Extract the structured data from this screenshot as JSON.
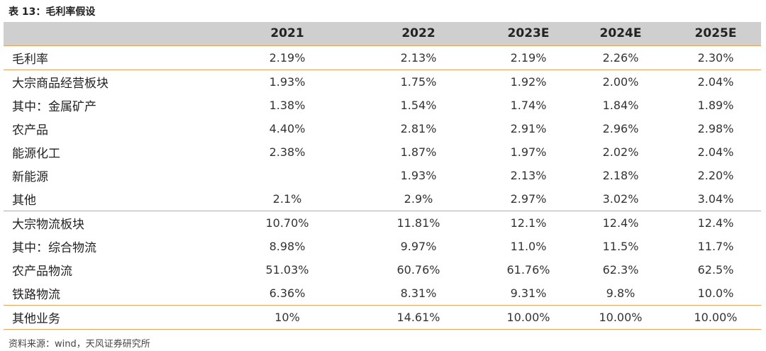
{
  "title": "表 13：毛利率假设",
  "columns": [
    "",
    "2021",
    "2022",
    "2023E",
    "2024E",
    "2025E"
  ],
  "rows": [
    {
      "label": "毛利率",
      "values": [
        "2.19%",
        "2.13%",
        "2.19%",
        "2.26%",
        "2.30%"
      ]
    },
    {
      "label": "大宗商品经营板块",
      "values": [
        "1.93%",
        "1.75%",
        "1.92%",
        "2.00%",
        "2.04%"
      ]
    },
    {
      "label": "其中：金属矿产",
      "values": [
        "1.38%",
        "1.54%",
        "1.74%",
        "1.84%",
        "1.89%"
      ]
    },
    {
      "label": "农产品",
      "values": [
        "4.40%",
        "2.81%",
        "2.91%",
        "2.96%",
        "2.98%"
      ]
    },
    {
      "label": "能源化工",
      "values": [
        "2.38%",
        "1.87%",
        "1.97%",
        "2.02%",
        "2.04%"
      ]
    },
    {
      "label": "新能源",
      "values": [
        "",
        "1.93%",
        "2.13%",
        "2.18%",
        "2.20%"
      ]
    },
    {
      "label": "其他",
      "values": [
        "2.1%",
        "2.9%",
        "2.97%",
        "3.02%",
        "3.04%"
      ]
    },
    {
      "label": "大宗物流板块",
      "values": [
        "10.70%",
        "11.81%",
        "12.1%",
        "12.4%",
        "12.4%"
      ]
    },
    {
      "label": "其中：综合物流",
      "values": [
        "8.98%",
        "9.97%",
        "11.0%",
        "11.5%",
        "11.7%"
      ]
    },
    {
      "label": "农产品物流",
      "values": [
        "51.03%",
        "60.76%",
        "61.76%",
        "62.3%",
        "62.5%"
      ]
    },
    {
      "label": "铁路物流",
      "values": [
        "6.36%",
        "8.31%",
        "9.31%",
        "9.8%",
        "10.0%"
      ]
    },
    {
      "label": "其他业务",
      "values": [
        "10%",
        "14.61%",
        "10.00%",
        "10.00%",
        "10.00%"
      ]
    }
  ],
  "source": "资料来源：wind，天风证券研究所"
}
